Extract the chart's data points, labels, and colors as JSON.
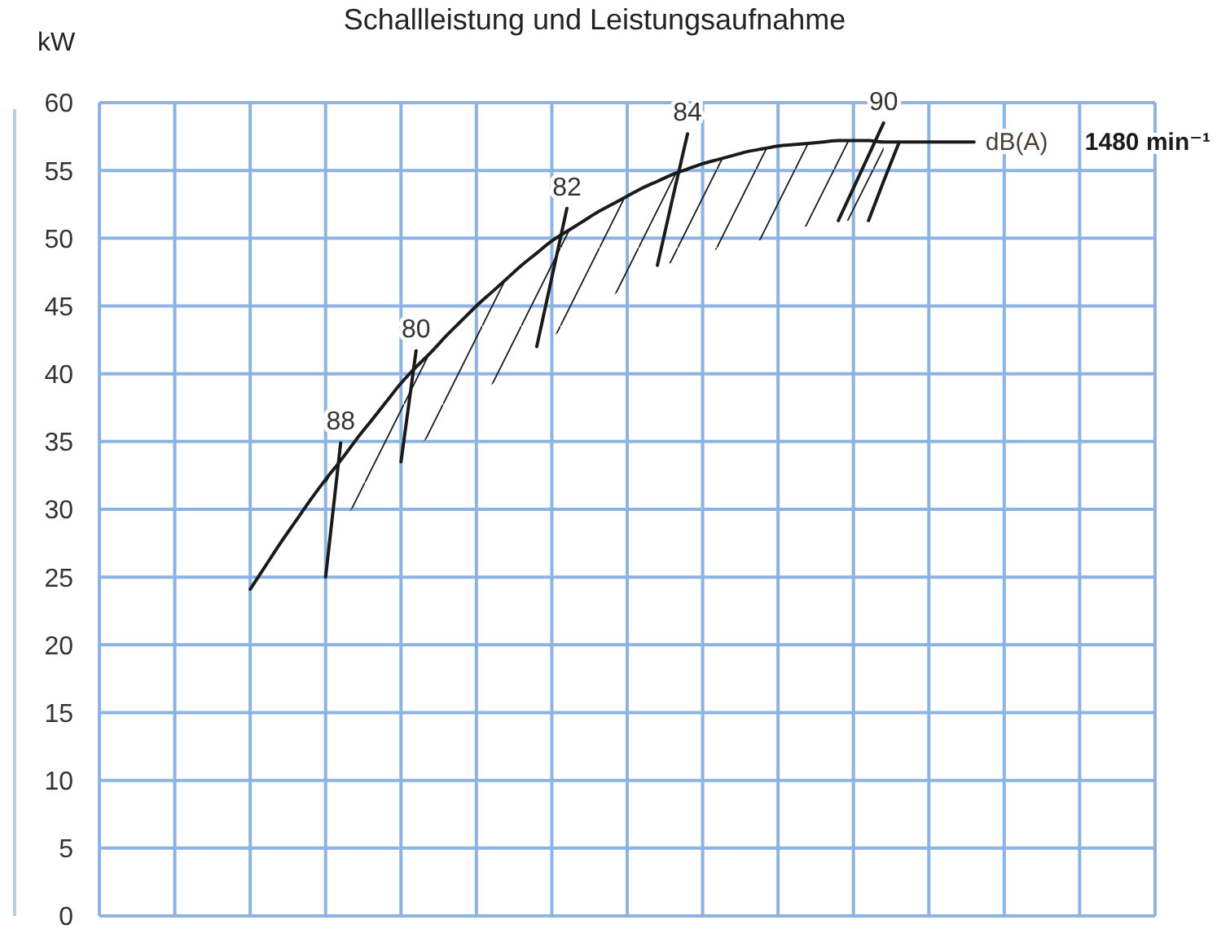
{
  "chart_data": {
    "type": "line",
    "title": "Schallleistung und Leistungsaufnahme",
    "ylabel": "kW",
    "categories": [
      null,
      null,
      null,
      null,
      null,
      null,
      null,
      null,
      null,
      null,
      null,
      null,
      null,
      null,
      null,
      null,
      null,
      null,
      null,
      null,
      null,
      null,
      null,
      null,
      null,
      null,
      null,
      null,
      null,
      null,
      null,
      null,
      null,
      null,
      null,
      null,
      null,
      null,
      null,
      null,
      null,
      null,
      null,
      null,
      null,
      null,
      null,
      null,
      null,
      null,
      null,
      null,
      null,
      null,
      null,
      null,
      null,
      null,
      null,
      null,
      null,
      null,
      null,
      null,
      null,
      null,
      null,
      null,
      null,
      null,
      null
    ],
    "ylim": [
      0,
      60
    ],
    "yticks": [
      0,
      5,
      10,
      15,
      20,
      25,
      30,
      35,
      40,
      45,
      50,
      55,
      60
    ],
    "grid": true,
    "tick_labels": "y",
    "marker": "none",
    "line_style": "solid",
    "annotations": [
      "dB(A)"
    ],
    "series": [
      {
        "name": "1480 min⁻¹",
        "color": "#1a1a1a",
        "values": [
          null,
          null,
          null,
          null,
          null,
          null,
          null,
          null,
          null,
          null,
          24.1,
          25.8,
          27.5,
          29.1,
          30.7,
          32.2,
          33.6,
          35.1,
          36.5,
          37.9,
          39.3,
          40.5,
          41.6,
          42.8,
          43.9,
          45.0,
          46.0,
          47.0,
          48.0,
          48.9,
          49.8,
          50.5,
          51.2,
          51.9,
          52.5,
          53.1,
          53.7,
          54.2,
          54.7,
          55.1,
          55.5,
          55.8,
          56.1,
          56.4,
          56.6,
          56.8,
          56.9,
          57.0,
          57.1,
          57.2,
          57.2,
          57.2,
          57.1,
          57.1,
          57.1,
          57.1,
          57.1,
          57.1,
          57.1,
          null,
          null,
          null,
          null,
          null,
          null,
          null,
          null,
          null,
          null,
          null,
          null
        ],
        "lower": [
          null,
          null,
          null,
          null,
          null,
          null,
          null,
          null,
          null,
          null,
          null,
          null,
          null,
          null,
          null,
          28.0,
          29.2,
          30.3,
          31.4,
          32.5,
          33.5,
          34.5,
          35.5,
          36.5,
          37.5,
          38.4,
          39.2,
          40.0,
          40.9,
          41.8,
          42.7,
          43.5,
          44.2,
          45.0,
          45.7,
          46.6,
          47.3,
          47.9,
          48.2,
          48.6,
          48.9,
          49.2,
          49.5,
          49.7,
          49.9,
          50.2,
          50.6,
          50.9,
          51.2,
          51.3,
          51.3,
          52.8,
          55.4,
          null,
          null,
          null,
          null,
          null,
          null,
          null,
          null,
          null,
          null,
          null,
          null,
          null,
          null,
          null,
          null,
          null,
          null
        ],
        "upper": [
          null,
          null,
          null,
          null,
          null,
          null,
          null,
          null,
          null,
          null,
          null,
          null,
          null,
          null,
          null,
          32.2,
          33.6,
          35.1,
          36.5,
          37.9,
          39.3,
          40.5,
          41.6,
          42.8,
          43.9,
          45.0,
          46.0,
          47.0,
          48.0,
          48.9,
          49.8,
          50.5,
          51.2,
          51.9,
          52.5,
          53.1,
          53.7,
          54.2,
          54.7,
          55.1,
          55.5,
          55.8,
          56.1,
          56.4,
          56.6,
          56.8,
          56.9,
          57.0,
          57.1,
          57.2,
          57.2,
          57.2,
          57.1,
          null,
          null,
          null,
          null,
          null,
          null,
          null,
          null,
          null,
          null,
          null,
          null,
          null,
          null,
          null,
          null,
          null,
          null
        ]
      },
      {
        "name": "88",
        "color": "#1a1a1a",
        "values": [
          null,
          null,
          null,
          null,
          null,
          null,
          null,
          null,
          null,
          null,
          null,
          null,
          null,
          null,
          null,
          25.0,
          34.9,
          null,
          null,
          null,
          null,
          null,
          null,
          null,
          null,
          null,
          null,
          null,
          null,
          null,
          null,
          null,
          null,
          null,
          null,
          null,
          null,
          null,
          null,
          null,
          null,
          null,
          null,
          null,
          null,
          null,
          null,
          null,
          null,
          null,
          null,
          null,
          null,
          null,
          null,
          null,
          null,
          null,
          null,
          null,
          null,
          null,
          null,
          null,
          null,
          null,
          null,
          null,
          null,
          null,
          null
        ]
      },
      {
        "name": "80",
        "color": "#1a1a1a",
        "values": [
          null,
          null,
          null,
          null,
          null,
          null,
          null,
          null,
          null,
          null,
          null,
          null,
          null,
          null,
          null,
          null,
          null,
          null,
          null,
          null,
          33.5,
          41.7,
          null,
          null,
          null,
          null,
          null,
          null,
          null,
          null,
          null,
          null,
          null,
          null,
          null,
          null,
          null,
          null,
          null,
          null,
          null,
          null,
          null,
          null,
          null,
          null,
          null,
          null,
          null,
          null,
          null,
          null,
          null,
          null,
          null,
          null,
          null,
          null,
          null,
          null,
          null,
          null,
          null,
          null,
          null,
          null,
          null,
          null,
          null,
          null,
          null
        ]
      },
      {
        "name": "82",
        "color": "#1a1a1a",
        "values": [
          null,
          null,
          null,
          null,
          null,
          null,
          null,
          null,
          null,
          null,
          null,
          null,
          null,
          null,
          null,
          null,
          null,
          null,
          null,
          null,
          null,
          null,
          null,
          null,
          null,
          null,
          null,
          null,
          null,
          42.0,
          47.1,
          52.2,
          null,
          null,
          null,
          null,
          null,
          null,
          null,
          null,
          null,
          null,
          null,
          null,
          null,
          null,
          null,
          null,
          null,
          null,
          null,
          null,
          null,
          null,
          null,
          null,
          null,
          null,
          null,
          null,
          null,
          null,
          null,
          null,
          null,
          null,
          null,
          null,
          null,
          null,
          null
        ]
      },
      {
        "name": "84",
        "color": "#1a1a1a",
        "values": [
          null,
          null,
          null,
          null,
          null,
          null,
          null,
          null,
          null,
          null,
          null,
          null,
          null,
          null,
          null,
          null,
          null,
          null,
          null,
          null,
          null,
          null,
          null,
          null,
          null,
          null,
          null,
          null,
          null,
          null,
          null,
          null,
          null,
          null,
          null,
          null,
          null,
          48.0,
          52.9,
          57.7,
          null,
          null,
          null,
          null,
          null,
          null,
          null,
          null,
          null,
          null,
          null,
          null,
          null,
          null,
          null,
          null,
          null,
          null,
          null,
          null,
          null,
          null,
          null,
          null,
          null,
          null,
          null,
          null,
          null,
          null,
          null
        ]
      },
      {
        "name": "90",
        "color": "#1a1a1a",
        "values": [
          null,
          null,
          null,
          null,
          null,
          null,
          null,
          null,
          null,
          null,
          null,
          null,
          null,
          null,
          null,
          null,
          null,
          null,
          null,
          null,
          null,
          null,
          null,
          null,
          null,
          null,
          null,
          null,
          null,
          null,
          null,
          null,
          null,
          null,
          null,
          null,
          null,
          null,
          null,
          null,
          null,
          null,
          null,
          null,
          null,
          null,
          null,
          null,
          null,
          51.3,
          53.7,
          56.1,
          58.5,
          null,
          null,
          null,
          null,
          null,
          null,
          null,
          null,
          null,
          null,
          null,
          null,
          null,
          null,
          null,
          null,
          null,
          null
        ]
      },
      {
        "color": "#1a1a1a",
        "values": [
          null,
          null,
          null,
          null,
          null,
          null,
          null,
          null,
          null,
          null,
          null,
          null,
          null,
          null,
          null,
          null,
          null,
          null,
          null,
          null,
          null,
          null,
          null,
          null,
          null,
          null,
          null,
          null,
          null,
          null,
          null,
          null,
          null,
          null,
          null,
          null,
          null,
          null,
          null,
          null,
          null,
          null,
          null,
          null,
          null,
          null,
          null,
          null,
          null,
          null,
          null,
          51.3,
          54.2,
          57.0,
          null,
          null,
          null,
          null,
          null,
          null,
          null,
          null,
          null,
          null,
          null,
          null,
          null,
          null,
          null,
          null,
          null
        ]
      }
    ]
  }
}
